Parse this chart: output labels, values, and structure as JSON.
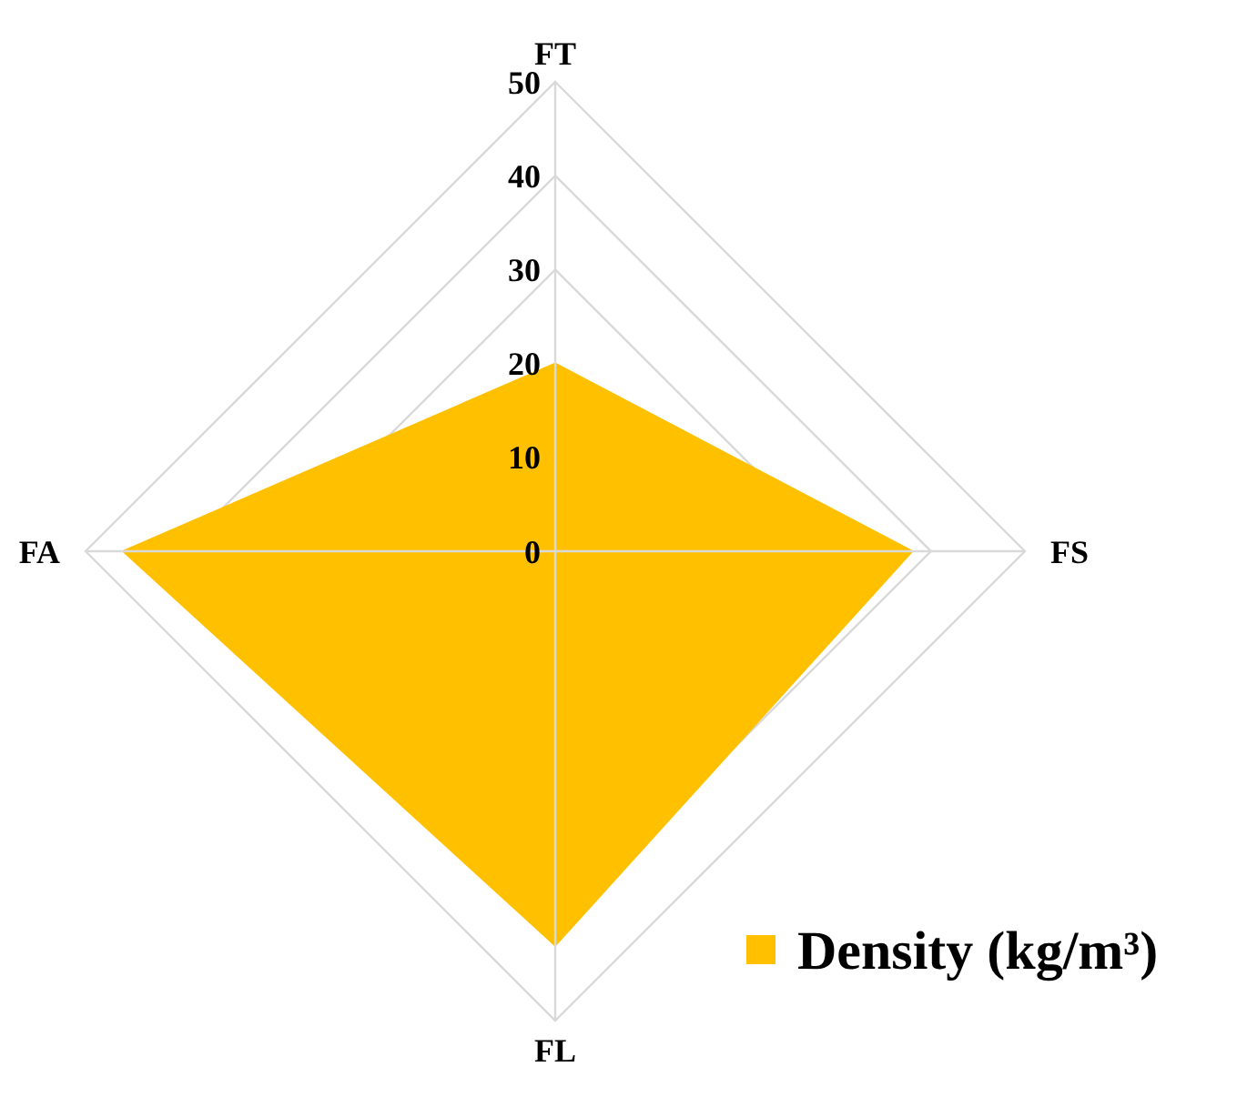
{
  "chart_data": {
    "type": "radar",
    "categories": [
      "FT",
      "FS",
      "FL",
      "FA"
    ],
    "series": [
      {
        "name": "Density (kg/m³)",
        "color": "#ffc000",
        "values": [
          20,
          38,
          42,
          46
        ]
      }
    ],
    "ylim": [
      0,
      50
    ],
    "yticks": [
      0,
      10,
      20,
      30,
      40,
      50
    ],
    "grid": true,
    "legend": "bottom right"
  }
}
